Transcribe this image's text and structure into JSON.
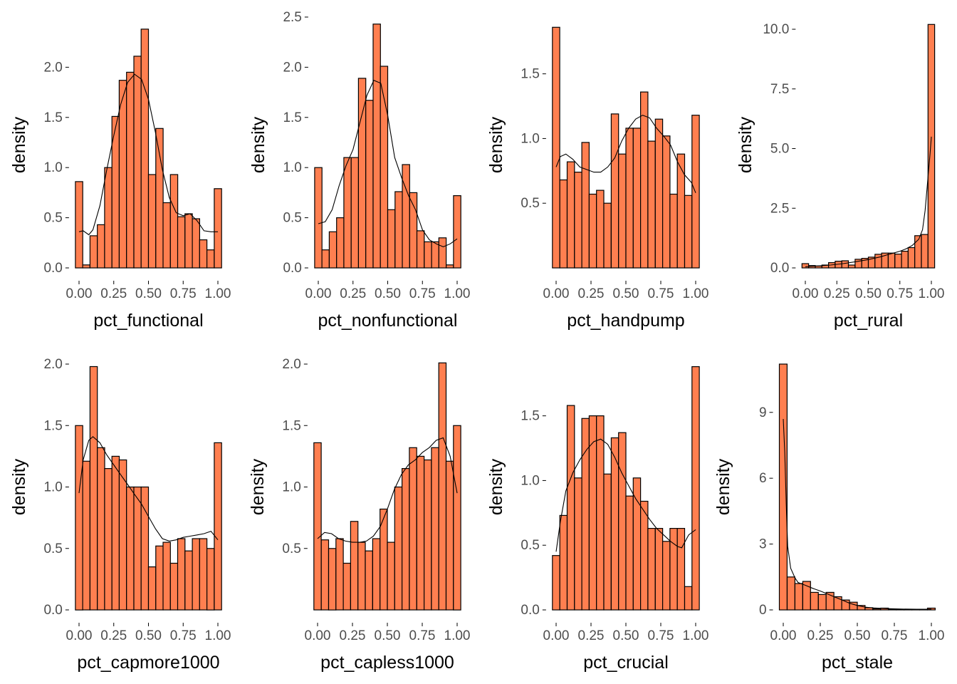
{
  "colors": {
    "bar_fill": "#ff7f50",
    "bar_stroke": "#000000",
    "density_line": "#000000",
    "axis": "#000000",
    "tick_text": "#4d4d4d"
  },
  "chart_data": [
    {
      "type": "bar",
      "xlabel": "pct_functional",
      "ylabel": "density",
      "x_ticks": [
        "0.00",
        "0.25",
        "0.50",
        "0.75",
        "1.00"
      ],
      "x_tick_values": [
        0,
        0.25,
        0.5,
        0.75,
        1
      ],
      "y_ticks": [
        "0.0",
        "0.5",
        "1.0",
        "1.5",
        "2.0"
      ],
      "y_tick_values": [
        0,
        0.5,
        1,
        1.5,
        2
      ],
      "ylim": [
        0,
        2.45
      ],
      "bin_centers": [
        0,
        0.0526,
        0.1053,
        0.1579,
        0.2105,
        0.2632,
        0.3158,
        0.3684,
        0.4211,
        0.4737,
        0.5263,
        0.5789,
        0.6316,
        0.6842,
        0.7368,
        0.7895,
        0.8421,
        0.8947,
        0.9474,
        1.0
      ],
      "values": [
        0.86,
        0.03,
        0.32,
        0.43,
        1.0,
        1.51,
        1.87,
        1.95,
        2.11,
        2.38,
        0.93,
        1.39,
        0.65,
        0.93,
        0.51,
        0.54,
        0.49,
        0.28,
        0.18,
        0.79
      ],
      "density": [
        [
          0,
          0.36
        ],
        [
          0.03,
          0.37
        ],
        [
          0.07,
          0.33
        ],
        [
          0.1,
          0.38
        ],
        [
          0.15,
          0.62
        ],
        [
          0.2,
          0.98
        ],
        [
          0.25,
          1.32
        ],
        [
          0.3,
          1.63
        ],
        [
          0.35,
          1.85
        ],
        [
          0.4,
          1.93
        ],
        [
          0.45,
          1.88
        ],
        [
          0.5,
          1.68
        ],
        [
          0.55,
          1.35
        ],
        [
          0.6,
          0.98
        ],
        [
          0.65,
          0.7
        ],
        [
          0.7,
          0.55
        ],
        [
          0.75,
          0.52
        ],
        [
          0.8,
          0.54
        ],
        [
          0.85,
          0.47
        ],
        [
          0.9,
          0.37
        ],
        [
          0.95,
          0.36
        ],
        [
          1.0,
          0.36
        ]
      ]
    },
    {
      "type": "bar",
      "xlabel": "pct_nonfunctional",
      "ylabel": "density",
      "x_ticks": [
        "0.00",
        "0.25",
        "0.50",
        "0.75",
        "1.00"
      ],
      "x_tick_values": [
        0,
        0.25,
        0.5,
        0.75,
        1
      ],
      "y_ticks": [
        "0.0",
        "0.5",
        "1.0",
        "1.5",
        "2.0",
        "2.5"
      ],
      "y_tick_values": [
        0,
        0.5,
        1,
        1.5,
        2,
        2.5
      ],
      "ylim": [
        0,
        2.45
      ],
      "bin_centers": [
        0,
        0.0526,
        0.1053,
        0.1579,
        0.2105,
        0.2632,
        0.3158,
        0.3684,
        0.4211,
        0.4737,
        0.5263,
        0.5789,
        0.6316,
        0.6842,
        0.7368,
        0.7895,
        0.8421,
        0.8947,
        0.9474,
        1.0
      ],
      "values": [
        1.0,
        0.18,
        0.36,
        0.5,
        1.1,
        1.1,
        1.89,
        1.67,
        2.43,
        2.01,
        0.58,
        0.76,
        1.03,
        0.75,
        0.37,
        0.26,
        0.26,
        0.3,
        0.03,
        0.72
      ],
      "density": [
        [
          0,
          0.44
        ],
        [
          0.05,
          0.46
        ],
        [
          0.1,
          0.58
        ],
        [
          0.15,
          0.82
        ],
        [
          0.2,
          1.02
        ],
        [
          0.25,
          1.18
        ],
        [
          0.3,
          1.45
        ],
        [
          0.35,
          1.72
        ],
        [
          0.4,
          1.87
        ],
        [
          0.45,
          1.84
        ],
        [
          0.5,
          1.52
        ],
        [
          0.55,
          1.1
        ],
        [
          0.6,
          0.9
        ],
        [
          0.65,
          0.72
        ],
        [
          0.7,
          0.58
        ],
        [
          0.75,
          0.38
        ],
        [
          0.8,
          0.28
        ],
        [
          0.85,
          0.24
        ],
        [
          0.9,
          0.21
        ],
        [
          0.95,
          0.24
        ],
        [
          1.0,
          0.29
        ]
      ]
    },
    {
      "type": "bar",
      "xlabel": "pct_handpump",
      "ylabel": "density",
      "x_ticks": [
        "0.00",
        "0.25",
        "0.50",
        "0.75",
        "1.00"
      ],
      "x_tick_values": [
        0,
        0.25,
        0.5,
        0.75,
        1
      ],
      "y_ticks": [
        "0.5",
        "1.0",
        "1.5"
      ],
      "y_tick_values": [
        0.5,
        1,
        1.5
      ],
      "ylim": [
        0,
        1.9
      ],
      "bin_centers": [
        0,
        0.0526,
        0.1053,
        0.1579,
        0.2105,
        0.2632,
        0.3158,
        0.3684,
        0.4211,
        0.4737,
        0.5263,
        0.5789,
        0.6316,
        0.6842,
        0.7368,
        0.7895,
        0.8421,
        0.8947,
        0.9474,
        1.0
      ],
      "values": [
        1.86,
        0.68,
        0.82,
        0.74,
        0.97,
        0.57,
        0.6,
        0.5,
        1.19,
        0.88,
        1.08,
        1.08,
        1.36,
        0.98,
        1.15,
        1.02,
        0.57,
        0.88,
        0.56,
        1.18
      ],
      "density": [
        [
          0,
          0.78
        ],
        [
          0.03,
          0.86
        ],
        [
          0.07,
          0.88
        ],
        [
          0.12,
          0.84
        ],
        [
          0.17,
          0.78
        ],
        [
          0.22,
          0.76
        ],
        [
          0.27,
          0.74
        ],
        [
          0.32,
          0.74
        ],
        [
          0.37,
          0.78
        ],
        [
          0.42,
          0.85
        ],
        [
          0.47,
          0.98
        ],
        [
          0.52,
          1.08
        ],
        [
          0.57,
          1.15
        ],
        [
          0.62,
          1.18
        ],
        [
          0.67,
          1.16
        ],
        [
          0.72,
          1.08
        ],
        [
          0.77,
          1.02
        ],
        [
          0.82,
          0.95
        ],
        [
          0.87,
          0.82
        ],
        [
          0.92,
          0.72
        ],
        [
          0.97,
          0.66
        ],
        [
          1.0,
          0.58
        ]
      ]
    },
    {
      "type": "bar",
      "xlabel": "pct_rural",
      "ylabel": "density",
      "x_ticks": [
        "0.00",
        "0.25",
        "0.50",
        "0.75",
        "1.00"
      ],
      "x_tick_values": [
        0,
        0.25,
        0.5,
        0.75,
        1
      ],
      "y_ticks": [
        "0.0",
        "2.5",
        "5.0",
        "7.5",
        "10.0"
      ],
      "y_tick_values": [
        0,
        2.5,
        5,
        7.5,
        10
      ],
      "ylim": [
        0,
        10.3
      ],
      "bin_centers": [
        0,
        0.0526,
        0.1053,
        0.1579,
        0.2105,
        0.2632,
        0.3158,
        0.3684,
        0.4211,
        0.4737,
        0.5263,
        0.5789,
        0.6316,
        0.6842,
        0.7368,
        0.7895,
        0.8421,
        0.8947,
        0.9474,
        1.0
      ],
      "values": [
        0.18,
        0.1,
        0.08,
        0.12,
        0.22,
        0.28,
        0.3,
        0.12,
        0.36,
        0.4,
        0.45,
        0.57,
        0.62,
        0.62,
        0.58,
        0.7,
        0.85,
        1.35,
        1.4,
        10.2
      ],
      "density": [
        [
          0,
          0.05
        ],
        [
          0.1,
          0.08
        ],
        [
          0.2,
          0.12
        ],
        [
          0.3,
          0.18
        ],
        [
          0.4,
          0.26
        ],
        [
          0.5,
          0.35
        ],
        [
          0.6,
          0.47
        ],
        [
          0.65,
          0.55
        ],
        [
          0.7,
          0.62
        ],
        [
          0.75,
          0.7
        ],
        [
          0.8,
          0.8
        ],
        [
          0.85,
          0.95
        ],
        [
          0.9,
          1.2
        ],
        [
          0.93,
          1.6
        ],
        [
          0.95,
          2.4
        ],
        [
          0.97,
          3.6
        ],
        [
          0.99,
          4.8
        ],
        [
          1.0,
          5.5
        ]
      ]
    },
    {
      "type": "bar",
      "xlabel": "pct_capmore1000",
      "ylabel": "density",
      "x_ticks": [
        "0.00",
        "0.25",
        "0.50",
        "0.75",
        "1.00"
      ],
      "x_tick_values": [
        0,
        0.25,
        0.5,
        0.75,
        1
      ],
      "y_ticks": [
        "0.0",
        "0.5",
        "1.0",
        "1.5",
        "2.0"
      ],
      "y_tick_values": [
        0,
        0.5,
        1,
        1.5,
        2
      ],
      "ylim": [
        0,
        2.0
      ],
      "bin_centers": [
        0,
        0.0526,
        0.1053,
        0.1579,
        0.2105,
        0.2632,
        0.3158,
        0.3684,
        0.4211,
        0.4737,
        0.5263,
        0.5789,
        0.6316,
        0.6842,
        0.7368,
        0.7895,
        0.8421,
        0.8947,
        0.9474,
        1.0
      ],
      "values": [
        1.5,
        1.21,
        1.98,
        1.32,
        1.15,
        1.25,
        1.22,
        1.0,
        1.0,
        1.0,
        0.35,
        0.52,
        0.55,
        0.38,
        0.58,
        0.48,
        0.58,
        0.58,
        0.5,
        1.36
      ],
      "density": [
        [
          0,
          0.95
        ],
        [
          0.03,
          1.22
        ],
        [
          0.07,
          1.38
        ],
        [
          0.1,
          1.41
        ],
        [
          0.15,
          1.36
        ],
        [
          0.2,
          1.26
        ],
        [
          0.25,
          1.18
        ],
        [
          0.3,
          1.1
        ],
        [
          0.35,
          1.02
        ],
        [
          0.4,
          0.94
        ],
        [
          0.45,
          0.86
        ],
        [
          0.5,
          0.76
        ],
        [
          0.55,
          0.66
        ],
        [
          0.6,
          0.58
        ],
        [
          0.65,
          0.56
        ],
        [
          0.7,
          0.57
        ],
        [
          0.75,
          0.59
        ],
        [
          0.8,
          0.6
        ],
        [
          0.85,
          0.61
        ],
        [
          0.9,
          0.62
        ],
        [
          0.95,
          0.64
        ],
        [
          1.0,
          0.57
        ]
      ]
    },
    {
      "type": "bar",
      "xlabel": "pct_capless1000",
      "ylabel": "density",
      "x_ticks": [
        "0.00",
        "0.25",
        "0.50",
        "0.75",
        "1.00"
      ],
      "x_tick_values": [
        0,
        0.25,
        0.5,
        0.75,
        1
      ],
      "y_ticks": [
        "0.5",
        "1.0",
        "1.5",
        "2.0"
      ],
      "y_tick_values": [
        0.5,
        1,
        1.5,
        2
      ],
      "ylim": [
        0,
        2.0
      ],
      "bin_centers": [
        0,
        0.0526,
        0.1053,
        0.1579,
        0.2105,
        0.2632,
        0.3158,
        0.3684,
        0.4211,
        0.4737,
        0.5263,
        0.5789,
        0.6316,
        0.6842,
        0.7368,
        0.7895,
        0.8421,
        0.8947,
        0.9474,
        1.0
      ],
      "values": [
        1.36,
        0.57,
        0.5,
        0.58,
        0.38,
        0.72,
        0.55,
        0.48,
        0.58,
        0.82,
        0.55,
        1.0,
        1.15,
        1.32,
        1.25,
        1.22,
        1.32,
        2.01,
        1.21,
        1.5
      ],
      "density": [
        [
          0,
          0.58
        ],
        [
          0.05,
          0.63
        ],
        [
          0.1,
          0.62
        ],
        [
          0.15,
          0.58
        ],
        [
          0.2,
          0.56
        ],
        [
          0.25,
          0.55
        ],
        [
          0.3,
          0.55
        ],
        [
          0.35,
          0.56
        ],
        [
          0.4,
          0.6
        ],
        [
          0.45,
          0.68
        ],
        [
          0.5,
          0.82
        ],
        [
          0.55,
          0.98
        ],
        [
          0.6,
          1.1
        ],
        [
          0.65,
          1.18
        ],
        [
          0.7,
          1.22
        ],
        [
          0.75,
          1.28
        ],
        [
          0.8,
          1.32
        ],
        [
          0.85,
          1.38
        ],
        [
          0.9,
          1.4
        ],
        [
          0.95,
          1.25
        ],
        [
          1.0,
          0.95
        ]
      ]
    },
    {
      "type": "bar",
      "xlabel": "pct_crucial",
      "ylabel": "density",
      "x_ticks": [
        "0.00",
        "0.25",
        "0.50",
        "0.75",
        "1.00"
      ],
      "x_tick_values": [
        0,
        0.25,
        0.5,
        0.75,
        1
      ],
      "y_ticks": [
        "0.0",
        "0.5",
        "1.0",
        "1.5"
      ],
      "y_tick_values": [
        0,
        0.5,
        1,
        1.5
      ],
      "ylim": [
        0,
        1.9
      ],
      "bin_centers": [
        0,
        0.0526,
        0.1053,
        0.1579,
        0.2105,
        0.2632,
        0.3158,
        0.3684,
        0.4211,
        0.4737,
        0.5263,
        0.5789,
        0.6316,
        0.6842,
        0.7368,
        0.7895,
        0.8421,
        0.8947,
        0.9474,
        1.0
      ],
      "values": [
        0.42,
        0.73,
        1.58,
        1.02,
        1.48,
        1.5,
        1.5,
        1.05,
        1.33,
        1.37,
        0.88,
        1.02,
        0.84,
        0.63,
        0.63,
        0.53,
        0.63,
        0.63,
        0.18,
        1.88
      ],
      "density": [
        [
          0,
          0.45
        ],
        [
          0.03,
          0.68
        ],
        [
          0.07,
          0.92
        ],
        [
          0.12,
          1.06
        ],
        [
          0.17,
          1.16
        ],
        [
          0.22,
          1.24
        ],
        [
          0.27,
          1.3
        ],
        [
          0.32,
          1.32
        ],
        [
          0.37,
          1.28
        ],
        [
          0.42,
          1.18
        ],
        [
          0.47,
          1.06
        ],
        [
          0.52,
          0.96
        ],
        [
          0.57,
          0.86
        ],
        [
          0.62,
          0.78
        ],
        [
          0.67,
          0.7
        ],
        [
          0.72,
          0.63
        ],
        [
          0.77,
          0.58
        ],
        [
          0.82,
          0.53
        ],
        [
          0.87,
          0.49
        ],
        [
          0.9,
          0.48
        ],
        [
          0.95,
          0.58
        ],
        [
          1.0,
          0.62
        ]
      ]
    },
    {
      "type": "bar",
      "xlabel": "pct_stale",
      "ylabel": "density",
      "x_ticks": [
        "0.00",
        "0.25",
        "0.50",
        "0.75",
        "1.00"
      ],
      "x_tick_values": [
        0,
        0.25,
        0.5,
        0.75,
        1
      ],
      "y_ticks": [
        "0",
        "3",
        "6",
        "9"
      ],
      "y_tick_values": [
        0,
        3,
        6,
        9
      ],
      "ylim": [
        0,
        11.2
      ],
      "bin_centers": [
        0,
        0.0526,
        0.1053,
        0.1579,
        0.2105,
        0.2632,
        0.3158,
        0.3684,
        0.4211,
        0.4737,
        0.5263,
        0.5789,
        0.6316,
        0.6842,
        0.7368,
        0.7895,
        0.8421,
        0.8947,
        0.9474,
        1.0
      ],
      "values": [
        11.2,
        1.5,
        1.2,
        1.3,
        0.8,
        0.7,
        0.8,
        0.6,
        0.45,
        0.35,
        0.2,
        0.1,
        0.05,
        0.08,
        0.03,
        0.02,
        0.02,
        0.02,
        0.03,
        0.08
      ],
      "density": [
        [
          0,
          8.7
        ],
        [
          0.01,
          7.2
        ],
        [
          0.02,
          4.8
        ],
        [
          0.03,
          2.9
        ],
        [
          0.05,
          1.9
        ],
        [
          0.08,
          1.45
        ],
        [
          0.1,
          1.25
        ],
        [
          0.15,
          1.12
        ],
        [
          0.2,
          0.98
        ],
        [
          0.25,
          0.86
        ],
        [
          0.3,
          0.72
        ],
        [
          0.35,
          0.58
        ],
        [
          0.4,
          0.44
        ],
        [
          0.45,
          0.3
        ],
        [
          0.5,
          0.2
        ],
        [
          0.55,
          0.13
        ],
        [
          0.6,
          0.09
        ],
        [
          0.7,
          0.06
        ],
        [
          0.8,
          0.04
        ],
        [
          0.9,
          0.03
        ],
        [
          1.0,
          0.03
        ]
      ]
    }
  ]
}
